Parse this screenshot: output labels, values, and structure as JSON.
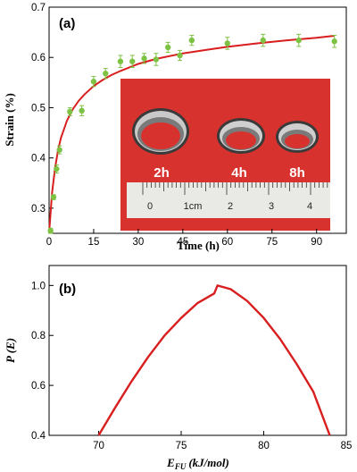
{
  "chart_data": [
    {
      "panel": "(a)",
      "type": "scatter",
      "xlabel": "Time (h)",
      "ylabel": "Strain (%)",
      "xlim": [
        0,
        100
      ],
      "ylim": [
        0.25,
        0.7
      ],
      "xticks": [
        0,
        15,
        30,
        45,
        60,
        75,
        90
      ],
      "yticks": [
        0.3,
        0.4,
        0.5,
        0.6,
        0.7
      ],
      "series": [
        {
          "kind": "points-with-error",
          "color": "#7dc242",
          "x": [
            0.5,
            1.5,
            2.5,
            3.5,
            7,
            11,
            15,
            19,
            24,
            28,
            32,
            36,
            40,
            44,
            48,
            60,
            72,
            84,
            96
          ],
          "y": [
            0.255,
            0.322,
            0.378,
            0.416,
            0.492,
            0.494,
            0.552,
            0.568,
            0.592,
            0.592,
            0.598,
            0.596,
            0.62,
            0.604,
            0.634,
            0.628,
            0.634,
            0.634,
            0.632
          ],
          "err": [
            0.005,
            0.005,
            0.008,
            0.008,
            0.008,
            0.01,
            0.01,
            0.01,
            0.012,
            0.012,
            0.01,
            0.012,
            0.01,
            0.01,
            0.01,
            0.012,
            0.012,
            0.012,
            0.012
          ]
        },
        {
          "kind": "fit-line",
          "color": "#d81e1e",
          "x": [
            0,
            1,
            2,
            3,
            4,
            6,
            8,
            10,
            12,
            15,
            18,
            21,
            24,
            30,
            36,
            45,
            54,
            60,
            70,
            80,
            90,
            96
          ],
          "y": [
            0.25,
            0.33,
            0.38,
            0.415,
            0.44,
            0.474,
            0.497,
            0.514,
            0.527,
            0.543,
            0.555,
            0.565,
            0.573,
            0.587,
            0.597,
            0.608,
            0.616,
            0.621,
            0.628,
            0.634,
            0.639,
            0.643
          ]
        }
      ],
      "inset_photo": {
        "background": "#d8322f",
        "ring_labels": [
          "2h",
          "4h",
          "8h"
        ],
        "ruler_labels": [
          "0",
          "1cm",
          "2",
          "3",
          "4"
        ]
      }
    },
    {
      "panel": "(b)",
      "type": "line",
      "xlabel": "E",
      "xlabel_sub": "FU",
      "xlabel_unit": "(kJ/mol)",
      "ylabel": "P (E)",
      "xlim": [
        67,
        85
      ],
      "ylim": [
        0.4,
        1.08
      ],
      "xticks": [
        70,
        75,
        80,
        85
      ],
      "yticks": [
        0.4,
        0.6,
        0.8,
        1.0
      ],
      "series": [
        {
          "color": "#d81e1e",
          "x": [
            70,
            71,
            72,
            73,
            74,
            75,
            76,
            77,
            77.2,
            78,
            79,
            80,
            81,
            82,
            83,
            84
          ],
          "y": [
            0.4,
            0.511,
            0.617,
            0.714,
            0.8,
            0.87,
            0.93,
            0.968,
            1.0,
            0.985,
            0.938,
            0.87,
            0.785,
            0.685,
            0.575,
            0.4
          ]
        }
      ]
    }
  ]
}
